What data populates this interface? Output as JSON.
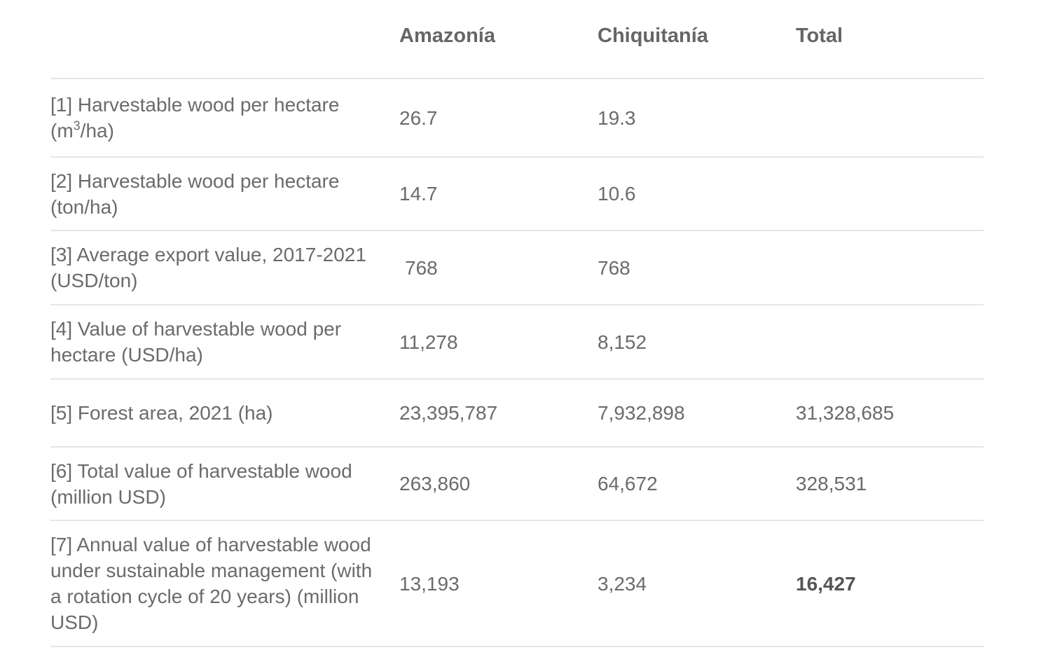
{
  "table": {
    "headers": [
      "",
      "Amazonía",
      "Chiquitanía",
      "Total"
    ],
    "rows": [
      {
        "label_pre": "[1] Harvestable wood per hectare (m",
        "label_sup": "3",
        "label_post": "/ha)",
        "amazonia": "26.7",
        "chiquitania": "19.3",
        "total": ""
      },
      {
        "label": "[2] Harvestable wood per hectare (ton/ha)",
        "amazonia": "14.7",
        "chiquitania": "10.6",
        "total": ""
      },
      {
        "label": "[3] Average export value, 2017-2021 (USD/ton)",
        "amazonia": "768",
        "chiquitania": "768",
        "total": ""
      },
      {
        "label": "[4] Value of harvestable wood per hectare (USD/ha)",
        "amazonia": "11,278",
        "chiquitania": "8,152",
        "total": ""
      },
      {
        "label": "[5] Forest area, 2021 (ha)",
        "amazonia": "23,395,787",
        "chiquitania": "7,932,898",
        "total": "31,328,685"
      },
      {
        "label": "[6] Total value of harvestable wood (million USD)",
        "amazonia": "263,860",
        "chiquitania": "64,672",
        "total": "328,531"
      },
      {
        "label": "[7] Annual value of harvestable wood under sustainable management (with a rotation cycle of 20 years) (million USD)",
        "amazonia": "13,193",
        "chiquitania": "3,234",
        "total": "16,427"
      }
    ]
  }
}
